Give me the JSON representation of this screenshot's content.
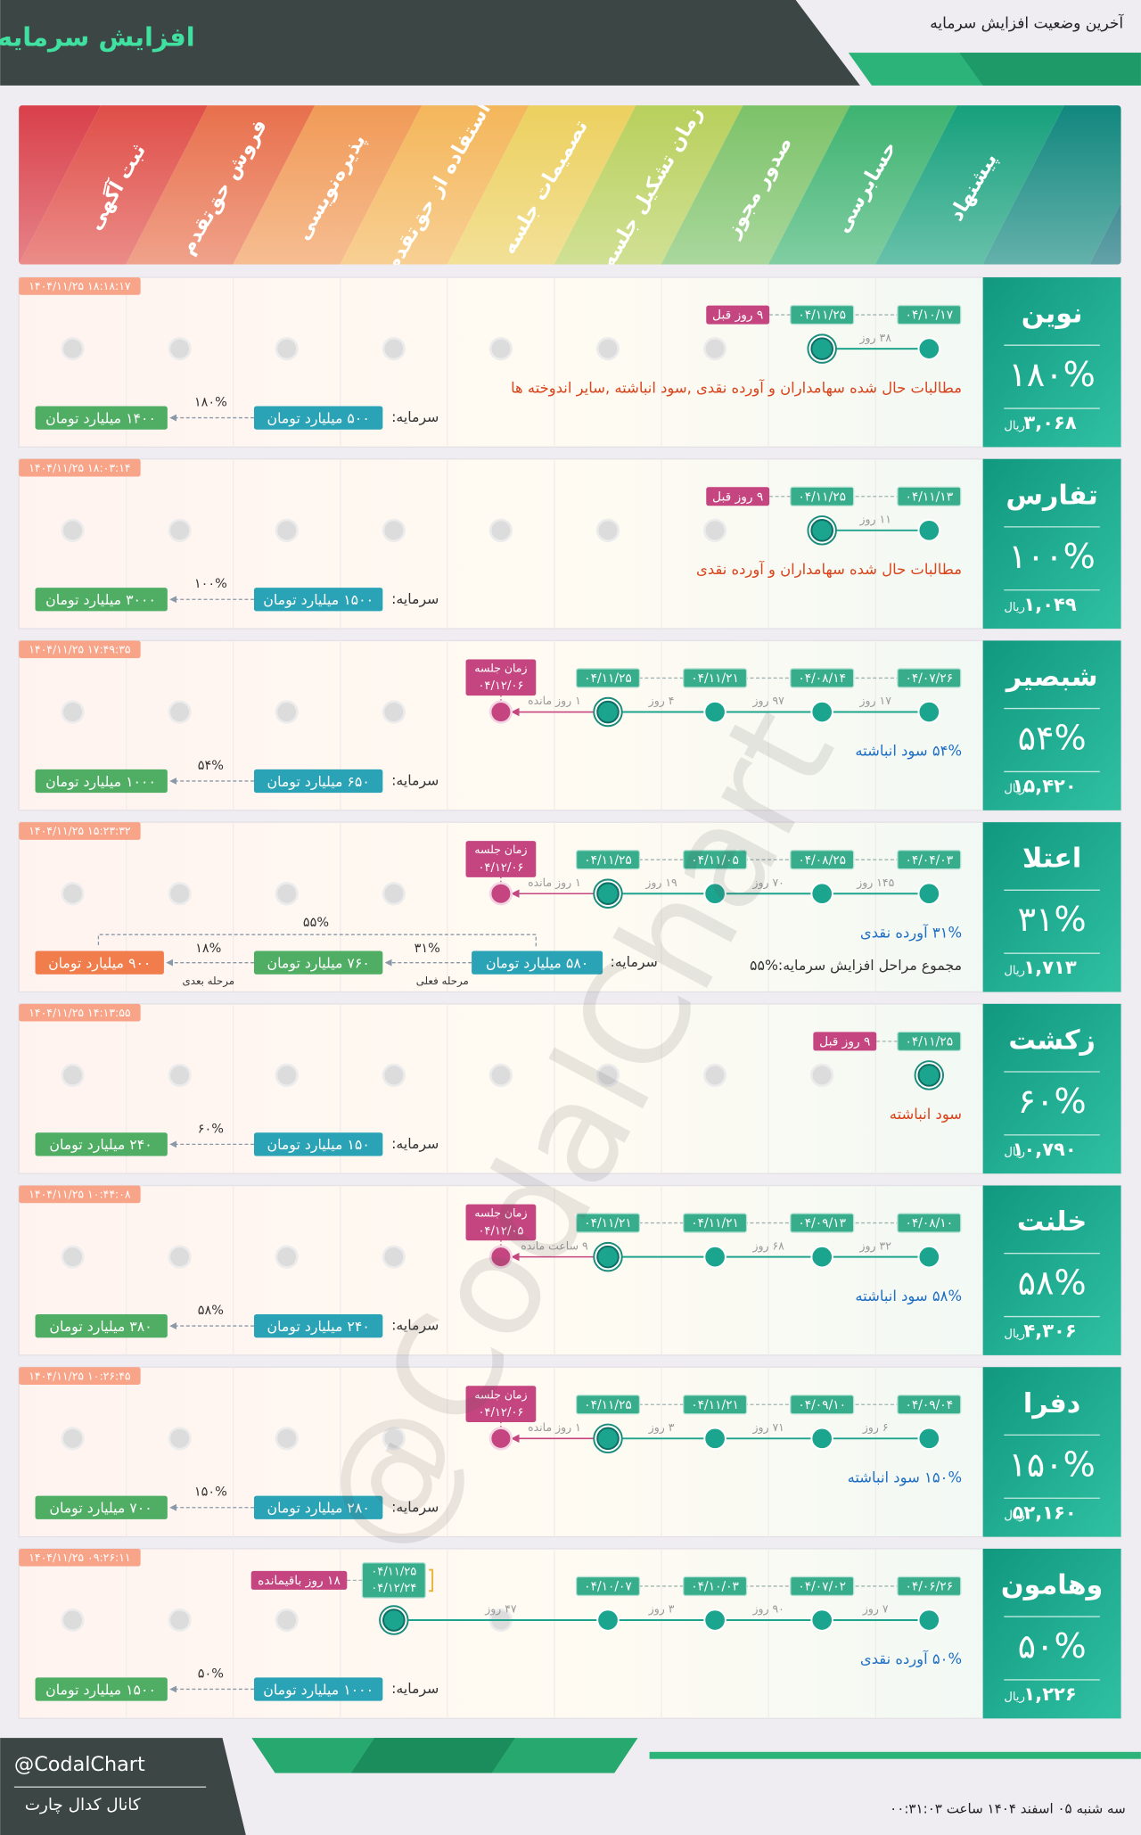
{
  "header": {
    "title": "افزایش سرمایه",
    "subtitle": "آخرین وضعیت افزایش سرمایه"
  },
  "stages": [
    "ثبت آگهی",
    "فروش حق‌تقدم",
    "پذیره‌نویسی",
    "استفاده از حق‌تقدم",
    "تصمیمات جلسه",
    "زمان تشکیل جلسه",
    "صدور مجوز",
    "حسابرسی",
    "پیشنهاد"
  ],
  "capital_label": "سرمایه:",
  "price_unit": "ریال",
  "meeting_label": "زمان جلسه",
  "watermark": "@CodalChart",
  "companies": [
    {
      "name": "نوین",
      "percent": "۱۸۰%",
      "price": "۳,۰۶۸",
      "timestamp": "۱۴۰۴/۱۱/۲۵ ۱۸:۱۸:۱۷",
      "dates": [
        "۰۴/۱۰/۱۷",
        "۰۴/۱۱/۲۵"
      ],
      "gaps": [
        "۳۸ روز"
      ],
      "tag": "۹ روز قبل",
      "description": "مطالبات حال شده سهامداران و آورده نقدی ,سود انباشته ,سایر اندوخته ها",
      "capital": {
        "current": "۵۰۰ میلیارد تومان",
        "pct": "۱۸۰%",
        "target": "۱۴۰۰ میلیارد تومان"
      }
    },
    {
      "name": "تفارس",
      "percent": "۱۰۰%",
      "price": "۱,۰۴۹",
      "timestamp": "۱۴۰۴/۱۱/۲۵ ۱۸:۰۳:۱۴",
      "dates": [
        "۰۴/۱۱/۱۳",
        "۰۴/۱۱/۲۵"
      ],
      "gaps": [
        "۱۱ روز"
      ],
      "tag": "۹ روز قبل",
      "description": "مطالبات حال شده سهامداران و آورده نقدی",
      "capital": {
        "current": "۱۵۰۰ میلیارد تومان",
        "pct": "۱۰۰%",
        "target": "۳۰۰۰ میلیارد تومان"
      }
    },
    {
      "name": "شبصیر",
      "percent": "۵۴%",
      "price": "۱۵,۴۲۰",
      "timestamp": "۱۴۰۴/۱۱/۲۵ ۱۷:۴۹:۳۵",
      "dates": [
        "۰۴/۰۷/۲۶",
        "۰۴/۰۸/۱۴",
        "۰۴/۱۱/۲۱",
        "۰۴/۱۱/۲۵"
      ],
      "gaps": [
        "۱۷ روز",
        "۹۷ روز",
        "۴ روز"
      ],
      "meeting": "۰۴/۱۲/۰۶",
      "remaining": "۱ روز مانده",
      "description": "۵۴% سود انباشته",
      "capital": {
        "current": "۶۵۰ میلیارد تومان",
        "pct": "۵۴%",
        "target": "۱۰۰۰ میلیارد تومان"
      }
    },
    {
      "name": "اعتلا",
      "percent": "۳۱%",
      "price": "۱,۷۱۳",
      "timestamp": "۱۴۰۴/۱۱/۲۵ ۱۵:۲۳:۳۲",
      "dates": [
        "۰۴/۰۴/۰۳",
        "۰۴/۰۸/۲۵",
        "۰۴/۱۱/۰۵",
        "۰۴/۱۱/۲۵"
      ],
      "gaps": [
        "۱۴۵ روز",
        "۷۰ روز",
        "۱۹ روز"
      ],
      "meeting": "۰۴/۱۲/۰۶",
      "remaining": "۱ روز مانده",
      "description": "۳۱% آورده نقدی",
      "description2": "مجموع مراحل افزایش سرمایه:%۵۵",
      "capital": {
        "current": "۵۸۰ میلیارد تومان",
        "pct": "۳۱%",
        "step_label": "مرحله فعلی",
        "next": "۷۶۰ میلیارد تومان",
        "next_pct": "۱۸%",
        "next_label": "مرحله بعدی",
        "target": "۹۰۰ میلیارد تومان",
        "total_pct": "۵۵%"
      }
    },
    {
      "name": "زکشت",
      "percent": "۶۰%",
      "price": "۱۰,۷۹۰",
      "timestamp": "۱۴۰۴/۱۱/۲۵ ۱۴:۱۳:۵۵",
      "dates": [
        "۰۴/۱۱/۲۵"
      ],
      "gaps": [],
      "tag": "۹ روز قبل",
      "description": "سود انباشته",
      "capital": {
        "current": "۱۵۰ میلیارد تومان",
        "pct": "۶۰%",
        "target": "۲۴۰ میلیارد تومان"
      }
    },
    {
      "name": "خلنت",
      "percent": "۵۸%",
      "price": "۴,۳۰۶",
      "timestamp": "۱۴۰۴/۱۱/۲۵ ۱۰:۴۴:۰۸",
      "dates": [
        "۰۴/۰۸/۱۰",
        "۰۴/۰۹/۱۳",
        "۰۴/۱۱/۲۱",
        "۰۴/۱۱/۲۱"
      ],
      "gaps": [
        "۳۲ روز",
        "۶۸ روز"
      ],
      "meeting": "۰۴/۱۲/۰۵",
      "remaining": "۹ ساعت مانده",
      "description": "۵۸% سود انباشته",
      "capital": {
        "current": "۲۴۰ میلیارد تومان",
        "pct": "۵۸%",
        "target": "۳۸۰ میلیارد تومان"
      }
    },
    {
      "name": "دفرا",
      "percent": "۱۵۰%",
      "price": "۵۲,۱۶۰",
      "timestamp": "۱۴۰۴/۱۱/۲۵ ۱۰:۲۶:۴۵",
      "dates": [
        "۰۴/۰۹/۰۴",
        "۰۴/۰۹/۱۰",
        "۰۴/۱۱/۲۱",
        "۰۴/۱۱/۲۵"
      ],
      "gaps": [
        "۶ روز",
        "۷۱ روز",
        "۳ روز"
      ],
      "meeting": "۰۴/۱۲/۰۶",
      "remaining": "۱ روز مانده",
      "description": "۱۵۰% سود انباشته",
      "capital": {
        "current": "۲۸۰ میلیارد تومان",
        "pct": "۱۵۰%",
        "target": "۷۰۰ میلیارد تومان"
      }
    },
    {
      "name": "وهامون",
      "percent": "۵۰%",
      "price": "۱,۲۲۶",
      "timestamp": "۱۴۰۴/۱۱/۲۵ ۰۹:۲۶:۱۱",
      "dates": [
        "۰۴/۰۶/۲۶",
        "۰۴/۰۷/۰۲",
        "۰۴/۱۰/۰۳",
        "۰۴/۱۰/۰۷"
      ],
      "gaps": [
        "۷ روز",
        "۹۰ روز",
        "۳ روز",
        "۴۷ روز"
      ],
      "rights_period": [
        "۰۴/۱۱/۲۵",
        "۰۴/۱۲/۲۴"
      ],
      "tag": "۱۸ روز باقیمانده",
      "description": "۵۰% آورده نقدی",
      "capital": {
        "current": "۱۰۰۰ میلیارد تومان",
        "pct": "۵۰%",
        "target": "۱۵۰۰ میلیارد تومان"
      }
    }
  ],
  "footer": {
    "handle": "@CodalChart",
    "channel": "کانال کدال چارت",
    "date": "سه شنبه ۰۵ اسفند ۱۴۰۴ ساعت ۰۰:۳۱:۰۳"
  }
}
